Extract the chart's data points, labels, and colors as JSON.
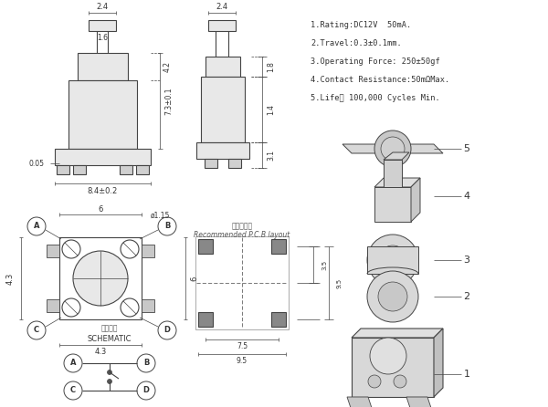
{
  "bg_color": "#ffffff",
  "line_color": "#444444",
  "spec_lines": [
    "1.Rating:DC12V  50mA.",
    "2.Travel:0.3±0.1mm.",
    "3.Operating Force: 250±50gf",
    "4.Contact Resistance:50mΩMax.",
    "5.Life： 100,000 Cycles Min."
  ],
  "title_chinese_1": "印制線路板",
  "title_chinese_2": "Recommended P.C.B layout",
  "schematic_chinese": "電路圖樣",
  "schematic_english": "SCHEMATIC"
}
